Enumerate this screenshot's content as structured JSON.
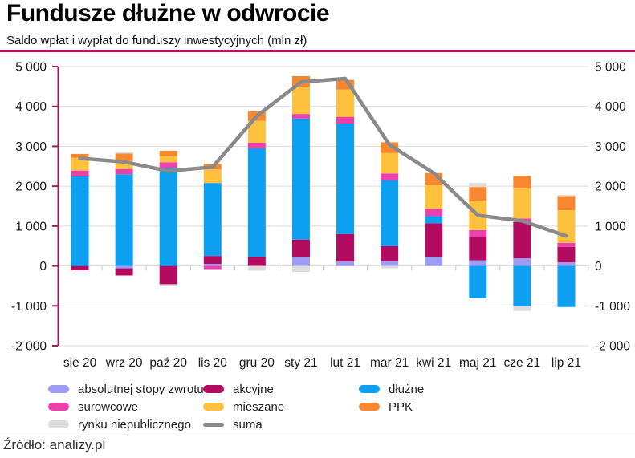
{
  "header": {
    "title": "Fundusze dłużne w odwrocie",
    "subtitle": "Saldo wpłat i wypłat do funduszy inwestycyjnych (mln zł)"
  },
  "footer": {
    "source": "Źródło: analizy.pl"
  },
  "colors": {
    "header_divider": "#c9075f",
    "axis_line": "#a21d5e",
    "gridline": "#d9d9d9",
    "tick": "#c8c8c8",
    "text": "#1a1a1a"
  },
  "chart_data": {
    "type": "bar",
    "subtype": "stacked-with-line",
    "title": "Fundusze dłużne w odwrocie",
    "subtitle": "Saldo wpłat i wypłat do funduszy inwestycyjnych (mln zł)",
    "categories": [
      "sie 20",
      "wrz 20",
      "paź 20",
      "lis 20",
      "gru 20",
      "sty 21",
      "lut 21",
      "mar 21",
      "kwi 21",
      "maj 21",
      "cze 21",
      "lip 21"
    ],
    "series": [
      {
        "name": "absolutnej stopy zwrotu",
        "color": "#9d9bf2",
        "values": [
          0,
          -60,
          0,
          50,
          0,
          230,
          110,
          120,
          230,
          140,
          190,
          90
        ]
      },
      {
        "name": "akcyjne",
        "color": "#b20b60",
        "values": [
          -110,
          -180,
          -460,
          200,
          230,
          430,
          690,
          380,
          840,
          580,
          910,
          390
        ]
      },
      {
        "name": "dłużne",
        "color": "#0da0f0",
        "values": [
          2250,
          2300,
          2460,
          1830,
          2720,
          3040,
          2770,
          1650,
          180,
          -810,
          -1010,
          -1030
        ]
      },
      {
        "name": "surowcowe",
        "color": "#ee3fae",
        "values": [
          140,
          130,
          140,
          -80,
          140,
          110,
          170,
          170,
          180,
          180,
          90,
          100
        ]
      },
      {
        "name": "mieszane",
        "color": "#fec13d",
        "values": [
          320,
          200,
          150,
          340,
          550,
          680,
          680,
          510,
          590,
          740,
          750,
          820
        ]
      },
      {
        "name": "PPK",
        "color": "#f8882f",
        "values": [
          100,
          190,
          140,
          140,
          240,
          270,
          240,
          270,
          310,
          340,
          320,
          350
        ]
      },
      {
        "name": "rynku niepublicznego",
        "color": "#dcdcdc",
        "values": [
          0,
          30,
          -50,
          0,
          -120,
          -150,
          40,
          -60,
          0,
          100,
          -120,
          30
        ]
      }
    ],
    "line_series": {
      "name": "suma",
      "color": "#8a8a8a",
      "values": [
        2700,
        2610,
        2380,
        2480,
        3760,
        4610,
        4700,
        3040,
        2330,
        1270,
        1130,
        750
      ]
    },
    "ylim": [
      -2000,
      5000
    ],
    "yticks": {
      "values": [
        5000,
        4000,
        3000,
        2000,
        1000,
        0,
        -1000,
        -2000
      ],
      "labels": [
        "5 000",
        "4 000",
        "3 000",
        "2 000",
        "1 000",
        "0",
        "-1 000",
        "-2 000"
      ]
    },
    "grid": true,
    "legend_position": "bottom"
  },
  "legend": {
    "items": [
      {
        "label": "absolutnej stopy zwrotu",
        "color": "#9d9bf2",
        "swatch": "box"
      },
      {
        "label": "akcyjne",
        "color": "#b20b60",
        "swatch": "box"
      },
      {
        "label": "dłużne",
        "color": "#0da0f0",
        "swatch": "box"
      },
      {
        "label": "surowcowe",
        "color": "#ee3fae",
        "swatch": "box"
      },
      {
        "label": "mieszane",
        "color": "#fec13d",
        "swatch": "box"
      },
      {
        "label": "PPK",
        "color": "#f8882f",
        "swatch": "box"
      },
      {
        "label": "rynku niepublicznego",
        "color": "#dcdcdc",
        "swatch": "box"
      },
      {
        "label": "suma",
        "color": "#8a8a8a",
        "swatch": "line"
      }
    ]
  }
}
